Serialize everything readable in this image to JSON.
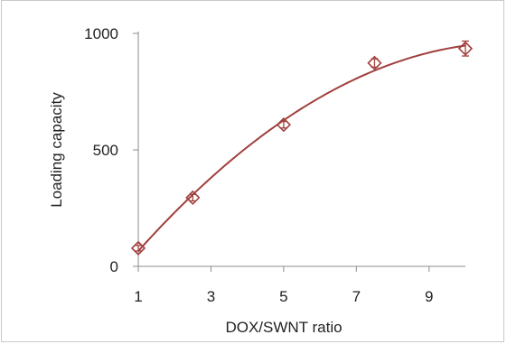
{
  "chart_data": {
    "type": "scatter",
    "xlabel": "DOX/SWNT ratio",
    "ylabel": "Loading capacity",
    "xlim": [
      1,
      10
    ],
    "ylim": [
      0,
      1000
    ],
    "x_ticks": [
      "1",
      "3",
      "5",
      "7",
      "9"
    ],
    "y_ticks": [
      "0",
      "500",
      "1000"
    ],
    "grid": false,
    "legend": "none",
    "series": [
      {
        "x": [
          1,
          2.5,
          5,
          7.5,
          10
        ],
        "y": [
          78,
          295,
          608,
          873,
          935
        ],
        "error": [
          12,
          14,
          14,
          18,
          32
        ],
        "marker": "diamond",
        "trendline": "polynomial"
      }
    ],
    "colors": {
      "series": "#a0403d",
      "axis": "#8c8c8c"
    }
  }
}
